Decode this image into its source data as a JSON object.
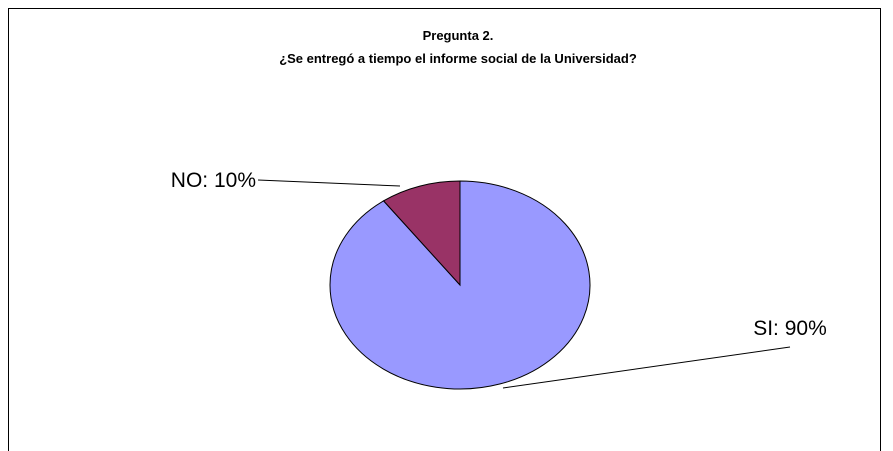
{
  "chart_data": {
    "type": "pie",
    "title": "Pregunta 2.",
    "subtitle": "¿Se entregó a tiempo el informe social de la Universidad?",
    "values": [
      90,
      10
    ],
    "value_labels": [
      "SI: 90%",
      "NO: 10%"
    ],
    "colors": [
      "#9999ff",
      "#993366"
    ]
  }
}
